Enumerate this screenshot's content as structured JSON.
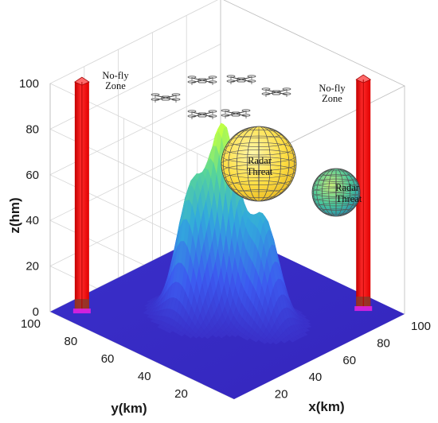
{
  "chart_data": {
    "type": "3d-surface",
    "title": "",
    "xlabel": "x(km)",
    "ylabel": "y(km)",
    "zlabel": "z(hm)",
    "xlim": [
      0,
      100
    ],
    "ylim": [
      0,
      100
    ],
    "zlim": [
      0,
      100
    ],
    "x_ticks": [
      "20",
      "40",
      "60",
      "80",
      "100"
    ],
    "y_ticks": [
      "20",
      "40",
      "60",
      "80",
      "100"
    ],
    "z_ticks": [
      "0",
      "20",
      "40",
      "60",
      "80",
      "100"
    ],
    "grid": true,
    "terrain_peaks": [
      {
        "x": 38,
        "y": 58,
        "height": 55
      },
      {
        "x": 50,
        "y": 52,
        "height": 78
      },
      {
        "x": 55,
        "y": 35,
        "height": 45
      }
    ],
    "obstacles": [
      {
        "type": "no-fly-zone",
        "label": "No-fly\nZone",
        "x": 10,
        "y": 92,
        "height": 100,
        "color": "#ff1a1a"
      },
      {
        "type": "no-fly-zone",
        "label": "No-fly\nZone",
        "x": 92,
        "y": 15,
        "height": 100,
        "color": "#ff1a1a"
      },
      {
        "type": "radar-threat",
        "label": "Radar\nThreat",
        "color": "#ffe34d"
      },
      {
        "type": "radar-threat",
        "label": "Radar\nThreat",
        "color": "#3fc6a0"
      }
    ],
    "uav_count": 6,
    "colors": {
      "ground": "#3b2dc8",
      "terrain_low": "#3a44e8",
      "terrain_high": "#b9ff40",
      "pillar": "#ff1a1a"
    }
  },
  "labels": {
    "nofly_1_line1": "No-fly",
    "nofly_1_line2": "Zone",
    "nofly_2_line1": "No-fly",
    "nofly_2_line2": "Zone",
    "radar_1_line1": "Radar",
    "radar_1_line2": "Threat",
    "radar_2_line1": "Radar",
    "radar_2_line2": "Threat"
  }
}
